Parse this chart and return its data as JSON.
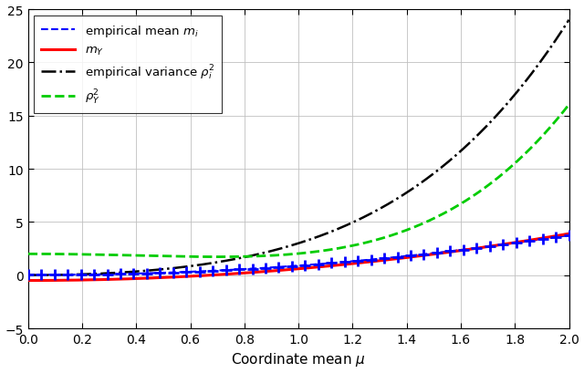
{
  "mu_start": 0.0,
  "mu_end": 2.0,
  "n_points": 500,
  "xlim": [
    0,
    2
  ],
  "ylim": [
    -5,
    25
  ],
  "yticks": [
    -5,
    0,
    5,
    10,
    15,
    20,
    25
  ],
  "xticks": [
    0,
    0.2,
    0.4,
    0.6,
    0.8,
    1.0,
    1.2,
    1.4,
    1.6,
    1.8,
    2.0
  ],
  "xlabel": "Coordinate mean $\\mu$",
  "n_markers": 42,
  "line_blue_color": "#0000ff",
  "line_red_color": "#ff0000",
  "line_black_color": "#000000",
  "line_green_color": "#00cc00",
  "grid_color": "#c0c0c0",
  "background_color": "#ffffff",
  "legend_labels": [
    "empirical mean $m_i$",
    "$m_Y$",
    "empirical variance $\\rho_i^2$",
    "$\\rho_Y^2$"
  ],
  "legend_loc": "upper left",
  "fontsize_legend": 9.5,
  "fontsize_xlabel": 11,
  "linewidth_blue": 1.5,
  "linewidth_red": 2.2,
  "linewidth_black": 1.8,
  "linewidth_green": 2.0,
  "marker_size": 8,
  "marker_ew": 2.0
}
